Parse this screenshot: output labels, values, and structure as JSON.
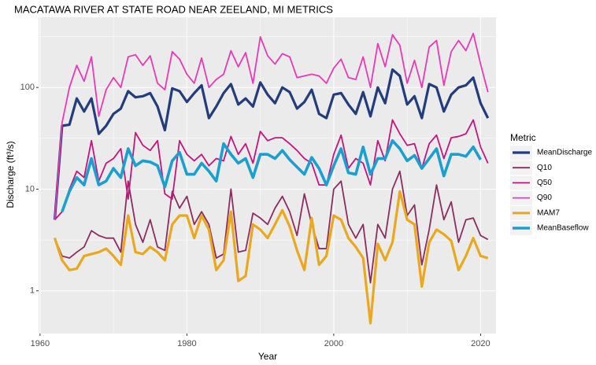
{
  "chart_data": {
    "type": "line",
    "title": "MACATAWA RIVER AT STATE ROAD NEAR ZEELAND, MI  METRICS",
    "x_label": "Year",
    "y_label": "Discharge (ft³/s)",
    "legend_title": "Metric",
    "log_y": true,
    "grid": true,
    "legend_position": "right",
    "xlim": [
      1959.8,
      2022.1
    ],
    "xticks": [
      1960,
      1980,
      2000,
      2020
    ],
    "ylim": [
      0.38,
      490
    ],
    "yticks": [
      1,
      10,
      100
    ],
    "x": [
      1962,
      1963,
      1964,
      1965,
      1966,
      1967,
      1968,
      1969,
      1970,
      1971,
      1972,
      1973,
      1974,
      1975,
      1976,
      1977,
      1978,
      1979,
      1980,
      1981,
      1982,
      1983,
      1984,
      1985,
      1986,
      1987,
      1988,
      1989,
      1990,
      1991,
      1992,
      1993,
      1994,
      1995,
      1996,
      1997,
      1998,
      1999,
      2000,
      2001,
      2002,
      2003,
      2004,
      2005,
      2006,
      2007,
      2008,
      2009,
      2010,
      2011,
      2012,
      2013,
      2014,
      2015,
      2016,
      2017,
      2018,
      2019,
      2020,
      2021
    ],
    "series": [
      {
        "name": "MeanDischarge",
        "color": "#233d7c",
        "linewidth": 3.2,
        "values": [
          5,
          42,
          43,
          78,
          58,
          78,
          35,
          42,
          55,
          62,
          92,
          80,
          82,
          88,
          65,
          38,
          98,
          92,
          72,
          88,
          105,
          50,
          65,
          88,
          108,
          68,
          78,
          65,
          112,
          85,
          70,
          100,
          90,
          62,
          72,
          95,
          55,
          50,
          85,
          88,
          68,
          55,
          90,
          52,
          100,
          70,
          150,
          130,
          68,
          82,
          50,
          108,
          100,
          58,
          85,
          100,
          105,
          125,
          70,
          50
        ]
      },
      {
        "name": "Q10",
        "color": "#8c2c5f",
        "linewidth": 1.8,
        "values": [
          3.3,
          2.2,
          2.1,
          2.4,
          2.7,
          3.9,
          3.5,
          3.3,
          3.3,
          2.4,
          12,
          4.5,
          3,
          5,
          2.7,
          2.5,
          9.5,
          6.5,
          8.5,
          4.5,
          6,
          4.5,
          2.1,
          2.3,
          10,
          2.4,
          2.5,
          5.8,
          5.2,
          4.5,
          6.5,
          8.5,
          6,
          3.5,
          9,
          4.5,
          2.6,
          2.6,
          10,
          12,
          4.5,
          3.3,
          4.5,
          1.2,
          4.5,
          3.3,
          10,
          15,
          5.5,
          7,
          1.8,
          4,
          11,
          5,
          7.5,
          3,
          5,
          5.2,
          3.5,
          3.2
        ]
      },
      {
        "name": "Q50",
        "color": "#c4157e",
        "linewidth": 1.8,
        "values": [
          5,
          6,
          10,
          15,
          13,
          30,
          12,
          18,
          20,
          25,
          8,
          36,
          27,
          24,
          30,
          9,
          8,
          30,
          22,
          19,
          22,
          17,
          20,
          19,
          33,
          22,
          28,
          18,
          37,
          30,
          32,
          32,
          28,
          24,
          20,
          18,
          11,
          11,
          22,
          34,
          16,
          20,
          18,
          11,
          30,
          19,
          48,
          35,
          27,
          28,
          16,
          28,
          34,
          20,
          32,
          33,
          35,
          48,
          26,
          18
        ]
      },
      {
        "name": "Q90",
        "color": "#e83ab6",
        "linewidth": 1.8,
        "values": [
          5,
          45,
          100,
          165,
          115,
          200,
          52,
          95,
          125,
          100,
          200,
          210,
          165,
          205,
          110,
          95,
          225,
          190,
          135,
          110,
          195,
          100,
          120,
          135,
          230,
          160,
          220,
          110,
          315,
          205,
          170,
          215,
          200,
          125,
          130,
          135,
          130,
          110,
          155,
          190,
          125,
          120,
          200,
          100,
          270,
          160,
          330,
          260,
          110,
          185,
          100,
          250,
          290,
          105,
          225,
          290,
          230,
          340,
          170,
          90
        ]
      },
      {
        "name": "MAM7",
        "color": "#e9a81d",
        "linewidth": 3.2,
        "values": [
          3.3,
          2,
          1.6,
          1.65,
          2.2,
          2.3,
          2.4,
          2.6,
          2.2,
          1.8,
          5.5,
          2.4,
          2.3,
          2.7,
          2.4,
          2,
          4.5,
          5.5,
          5.5,
          3.3,
          5.5,
          4,
          1.6,
          2,
          6,
          1.25,
          1.4,
          4.5,
          4,
          3.3,
          4.5,
          6.2,
          4.3,
          2.5,
          1.6,
          5.2,
          1.8,
          2.2,
          5.5,
          5,
          3.3,
          2.7,
          2.1,
          0.48,
          2.9,
          2,
          3,
          9.5,
          5,
          4.5,
          1.1,
          3,
          4,
          3.6,
          3.1,
          1.6,
          2.2,
          3.3,
          2.2,
          2.1
        ]
      },
      {
        "name": "MeanBaseflow",
        "color": "#1a9fce",
        "linewidth": 3.6,
        "values": [
          null,
          6,
          9.5,
          13,
          11,
          20,
          11,
          12,
          16,
          13,
          25,
          17,
          19,
          18.5,
          17,
          10.5,
          19,
          23,
          14,
          14,
          18,
          15,
          12,
          28,
          22,
          18,
          20,
          13,
          22,
          22,
          20,
          24,
          19.5,
          16.5,
          14,
          20.5,
          16,
          11,
          17,
          25,
          14.5,
          14,
          26,
          14,
          20,
          20,
          30,
          25,
          19,
          21.5,
          16,
          20,
          25,
          13.5,
          22,
          22,
          21,
          26,
          19.5,
          null
        ]
      }
    ]
  }
}
